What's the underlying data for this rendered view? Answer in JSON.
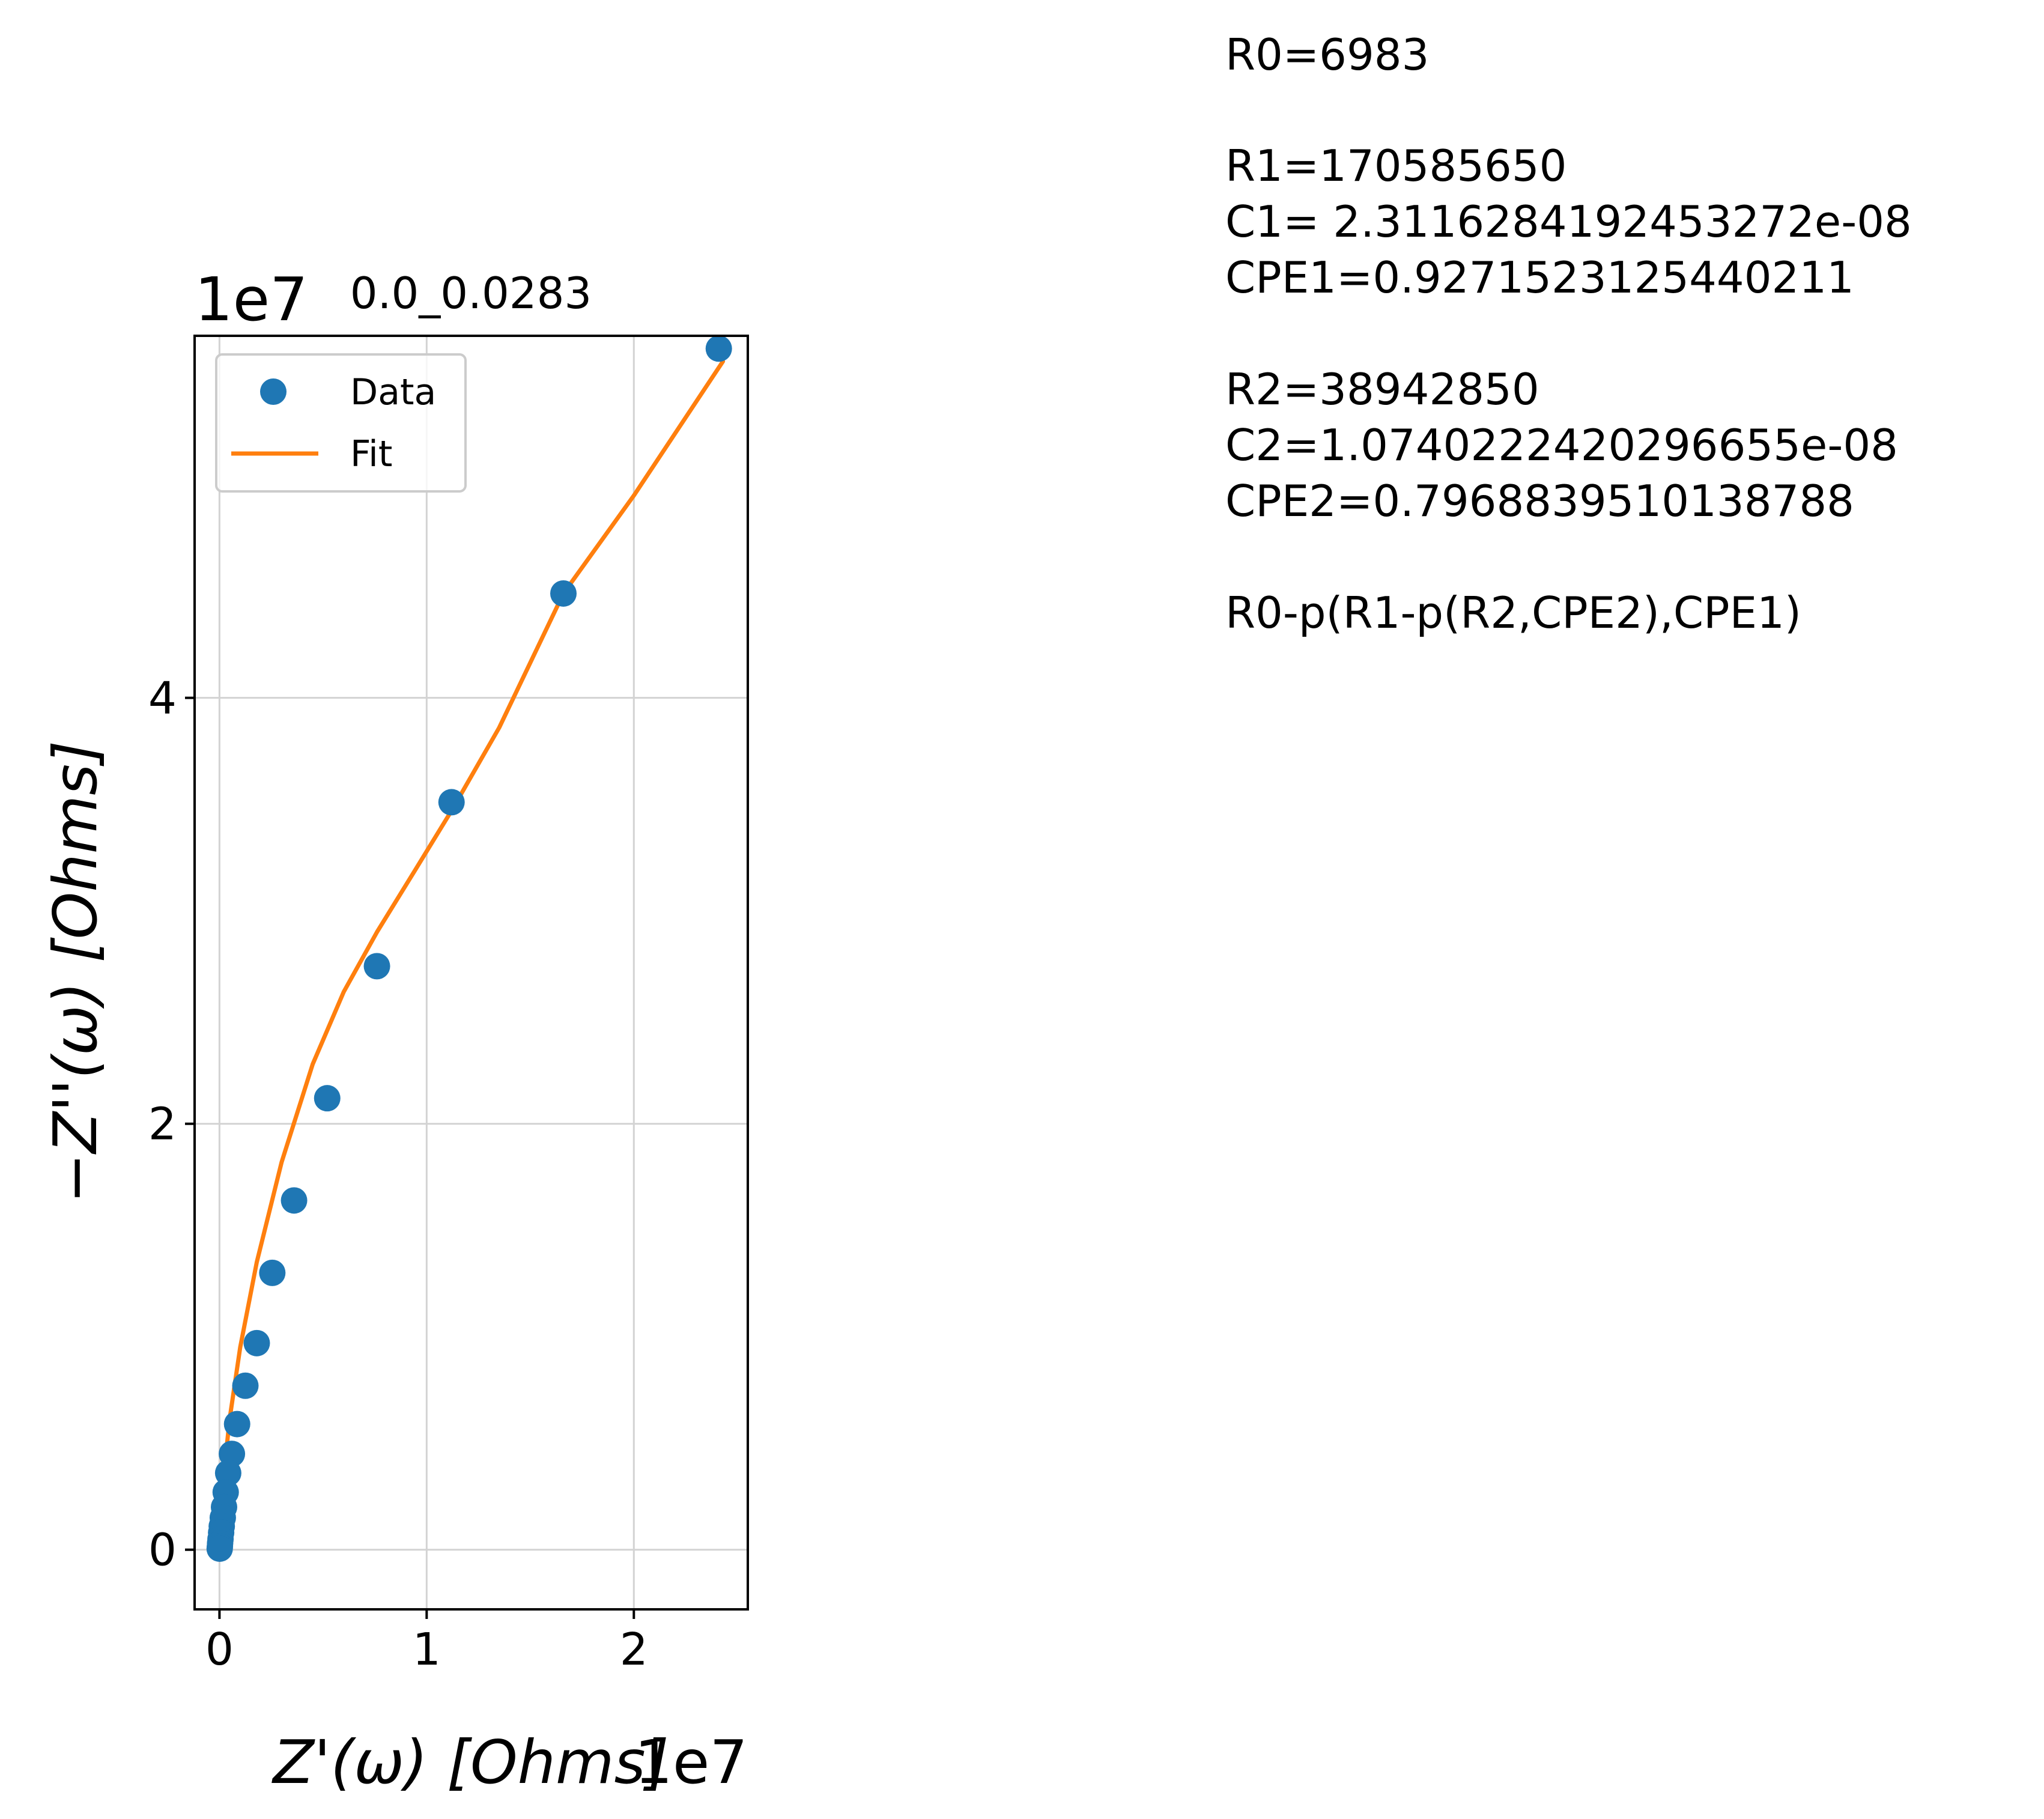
{
  "chart_data": {
    "type": "scatter",
    "title": "0.0_0.0283",
    "xlabel": "Z'(ω) [Ohms]",
    "ylabel": "−Z''(ω) [Ohms]",
    "x_multiplier": "1e7",
    "y_multiplier": "1e7",
    "xlim": [
      -0.12,
      2.55
    ],
    "ylim": [
      -0.28,
      5.7
    ],
    "x_ticks": [
      "0",
      "1",
      "2"
    ],
    "y_ticks": [
      "0",
      "2",
      "4"
    ],
    "grid": true,
    "legend_placement": "top-left",
    "series": [
      {
        "name": "Data",
        "style": "markers",
        "color": "#1f77b4",
        "x": [
          2.41,
          1.66,
          1.12,
          0.76,
          0.52,
          0.36,
          0.255,
          0.18,
          0.125,
          0.085,
          0.06,
          0.042,
          0.03,
          0.022,
          0.016,
          0.011,
          0.008,
          0.005,
          0.003,
          0.002,
          0.001
        ],
        "y": [
          5.64,
          4.49,
          3.51,
          2.74,
          2.12,
          1.64,
          1.3,
          0.97,
          0.77,
          0.59,
          0.45,
          0.36,
          0.27,
          0.2,
          0.15,
          0.11,
          0.08,
          0.05,
          0.03,
          0.015,
          0.005
        ]
      },
      {
        "name": "Fit",
        "style": "line",
        "color": "#ff7f0e",
        "x": [
          0.0,
          0.02,
          0.05,
          0.1,
          0.18,
          0.3,
          0.45,
          0.6,
          0.76,
          0.95,
          1.12,
          1.35,
          1.66,
          2.0,
          2.43
        ],
        "y": [
          0.0,
          0.35,
          0.62,
          0.95,
          1.35,
          1.82,
          2.28,
          2.62,
          2.9,
          3.2,
          3.47,
          3.86,
          4.49,
          4.95,
          5.58
        ]
      }
    ]
  },
  "parameters": {
    "r0": "R0=6983",
    "r1": "R1=170585650",
    "c1": "C1= 2.3116284192453272e-08",
    "cpe1": "CPE1=0.9271523125440211",
    "r2": "R2=38942850",
    "c2": "C2=1.0740222420296655e-08",
    "cpe2": "CPE2=0.7968839510138788",
    "circuit": "R0-p(R1-p(R2,CPE2),CPE1)"
  }
}
